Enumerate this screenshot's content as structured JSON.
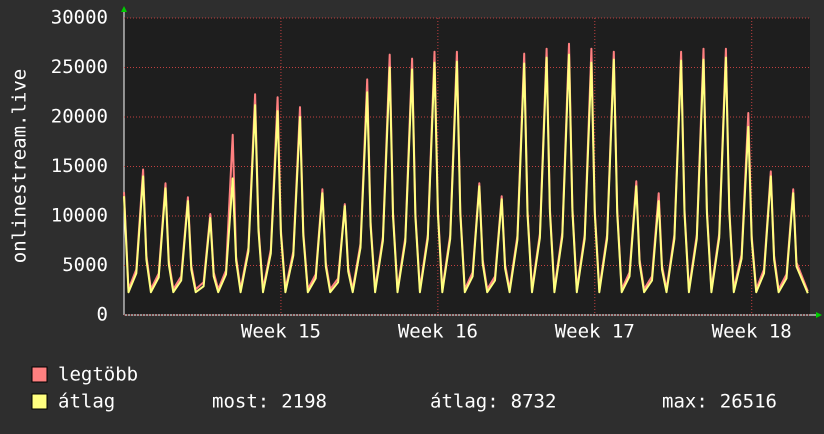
{
  "chart_data": {
    "type": "line",
    "y_label": "onlinestream.live",
    "x": [
      0,
      0.2,
      0.55,
      0.85,
      1,
      1.2,
      1.55,
      1.85,
      2,
      2.2,
      2.55,
      2.85,
      3,
      3.2,
      3.55,
      3.85,
      4,
      4.2,
      4.55,
      4.85,
      5,
      5.2,
      5.55,
      5.85,
      6,
      6.2,
      6.55,
      6.85,
      7,
      7.2,
      7.55,
      7.85,
      8,
      8.2,
      8.55,
      8.85,
      9,
      9.2,
      9.55,
      9.85,
      10,
      10.2,
      10.55,
      10.85,
      11,
      11.2,
      11.55,
      11.85,
      12,
      12.2,
      12.55,
      12.85,
      13,
      13.2,
      13.55,
      13.85,
      14,
      14.2,
      14.55,
      14.85,
      15,
      15.2,
      15.55,
      15.85,
      16,
      16.2,
      16.55,
      16.85,
      17,
      17.2,
      17.55,
      17.85,
      18,
      18.2,
      18.55,
      18.85,
      19,
      19.2,
      19.55,
      19.85,
      20,
      20.2,
      20.55,
      20.85,
      21,
      21.2,
      21.55,
      21.85,
      22,
      22.2,
      22.55,
      22.85,
      23,
      23.2,
      23.55,
      23.85,
      24,
      24.2,
      24.55,
      24.85,
      25,
      25.2,
      25.55,
      25.85,
      26,
      26.2,
      26.55,
      26.85,
      27,
      27.2,
      27.55,
      27.85,
      28,
      28.2,
      28.55,
      28.85,
      29,
      29.2,
      29.55,
      29.85,
      30,
      30.5
    ],
    "series": [
      {
        "name": "legtöbb",
        "color": "#ff8080",
        "values": [
          12400,
          2600,
          4600,
          14700,
          6000,
          2600,
          4200,
          13300,
          5500,
          2600,
          3900,
          11900,
          5000,
          2600,
          3300,
          10200,
          4300,
          2600,
          4500,
          18200,
          5900,
          2600,
          6800,
          22300,
          8900,
          2600,
          6600,
          22000,
          8600,
          2600,
          6400,
          21000,
          8400,
          2600,
          4100,
          12700,
          5300,
          2600,
          3700,
          11200,
          4800,
          2600,
          7200,
          23800,
          9400,
          2600,
          7900,
          26300,
          10400,
          2600,
          7800,
          25900,
          10300,
          2600,
          8100,
          26600,
          10600,
          2600,
          8100,
          26600,
          10600,
          2600,
          4300,
          13300,
          5600,
          2600,
          3900,
          12000,
          5100,
          2600,
          8000,
          26400,
          10600,
          2600,
          8200,
          26900,
          10800,
          2600,
          8300,
          27400,
          10900,
          2600,
          8100,
          26900,
          10600,
          2600,
          8100,
          26600,
          10700,
          2600,
          4300,
          13500,
          5600,
          2600,
          3900,
          12300,
          5000,
          2600,
          8100,
          26600,
          10700,
          2600,
          8100,
          26900,
          10700,
          2600,
          8200,
          26900,
          10800,
          2600,
          6100,
          20400,
          8000,
          2600,
          4600,
          14500,
          6000,
          2600,
          4100,
          12700,
          5300,
          2400
        ]
      },
      {
        "name": "átlag",
        "color": "#ffff80",
        "values": [
          12000,
          2300,
          4200,
          14000,
          5600,
          2300,
          3800,
          12800,
          5100,
          2300,
          3500,
          11500,
          4600,
          2300,
          2900,
          9800,
          3900,
          2300,
          4100,
          13800,
          5500,
          2300,
          6400,
          21200,
          8500,
          2300,
          6200,
          20600,
          8200,
          2300,
          6000,
          20000,
          8000,
          2300,
          3700,
          12300,
          4900,
          2300,
          3300,
          11000,
          4400,
          2300,
          6800,
          22500,
          9000,
          2300,
          7500,
          25000,
          10000,
          2300,
          7400,
          24800,
          9900,
          2300,
          7700,
          25500,
          10200,
          2300,
          7700,
          25600,
          10200,
          2300,
          3900,
          13000,
          5200,
          2300,
          3500,
          11700,
          4700,
          2300,
          7600,
          25400,
          10200,
          2300,
          7800,
          26000,
          10400,
          2300,
          7900,
          26300,
          10500,
          2300,
          7700,
          25500,
          10200,
          2300,
          7700,
          25800,
          10300,
          2300,
          3900,
          13000,
          5200,
          2300,
          3500,
          11500,
          4600,
          2300,
          7700,
          25700,
          10300,
          2300,
          7700,
          25800,
          10300,
          2300,
          7800,
          26000,
          10400,
          2300,
          5700,
          19000,
          7600,
          2300,
          4200,
          14000,
          5600,
          2300,
          3700,
          12300,
          4900,
          2198
        ]
      }
    ],
    "xlim": [
      0,
      30.6
    ],
    "xticks": [
      {
        "value": 7,
        "label": "Week 15"
      },
      {
        "value": 14,
        "label": "Week 16"
      },
      {
        "value": 21,
        "label": "Week 17"
      },
      {
        "value": 28,
        "label": "Week 18"
      }
    ],
    "ylim": [
      0,
      30000
    ],
    "yticks": [
      0,
      5000,
      10000,
      15000,
      20000,
      25000,
      30000
    ],
    "grid": true,
    "stats": [
      {
        "label": "most:",
        "value": 2198
      },
      {
        "label": "átlag:",
        "value": 8732
      },
      {
        "label": "max:",
        "value": 26516
      }
    ]
  }
}
